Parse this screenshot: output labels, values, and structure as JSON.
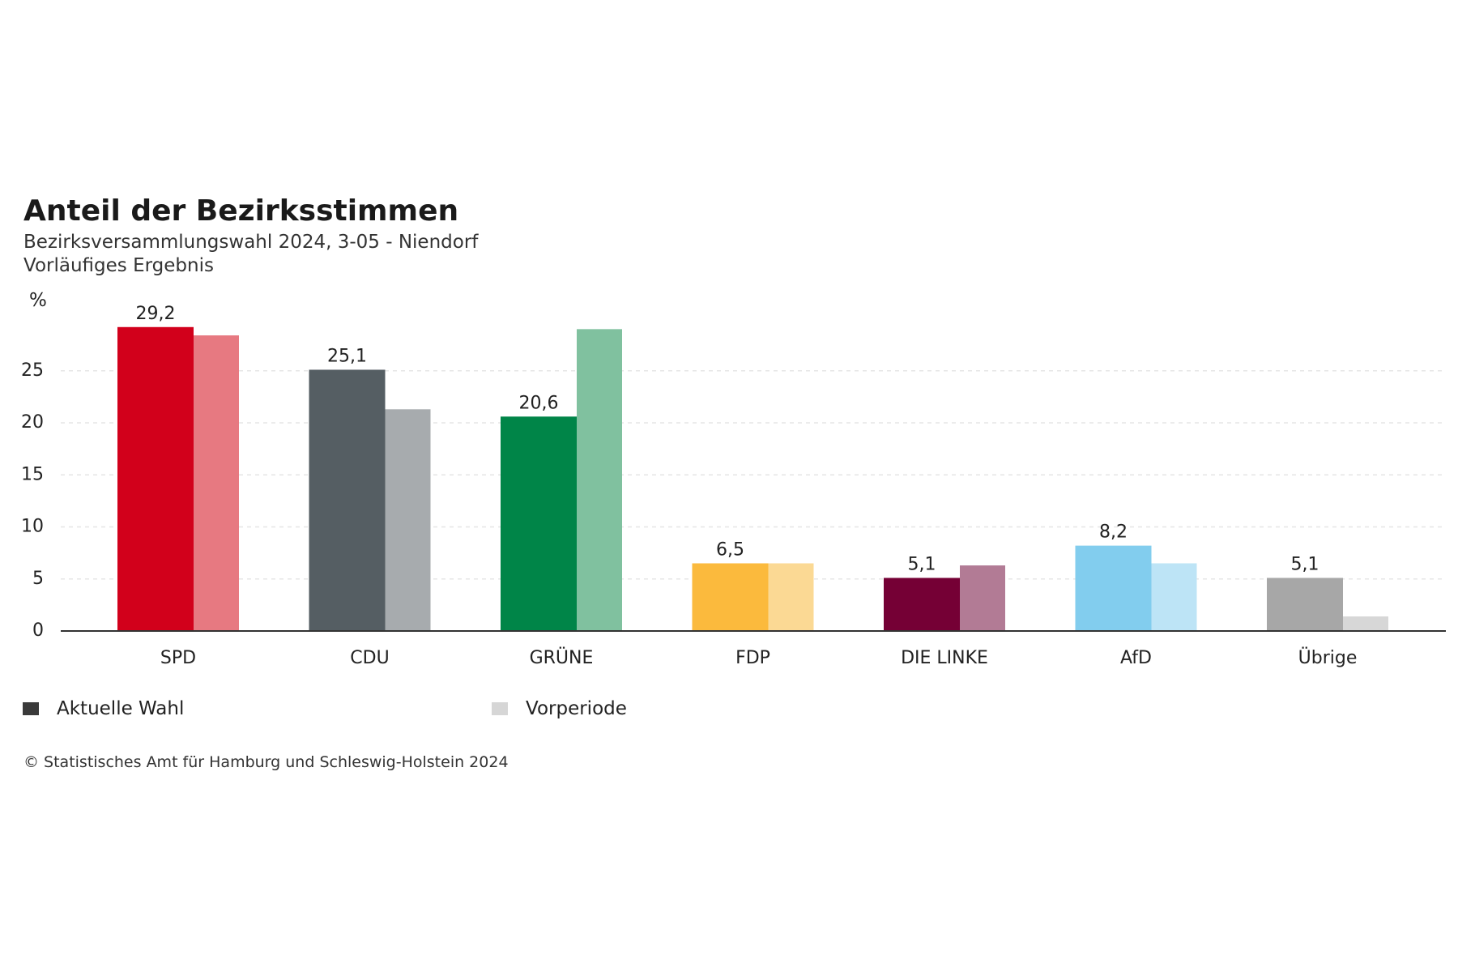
{
  "chart_data": {
    "type": "bar",
    "title": "Anteil der Bezirksstimmen",
    "subtitle": "Bezirksversammlungswahl 2024, 3-05 - Niendorf",
    "subtitle2": "Vorläufiges Ergebnis",
    "ylabel": "%",
    "xlabel": "",
    "ylim": [
      0,
      30
    ],
    "yticks": [
      0,
      5,
      10,
      15,
      20,
      25
    ],
    "grid": true,
    "categories": [
      "SPD",
      "CDU",
      "GRÜNE",
      "FDP",
      "DIE LINKE",
      "AfD",
      "Übrige"
    ],
    "series": [
      {
        "name": "Aktuelle Wahl",
        "values": [
          29.2,
          25.1,
          20.6,
          6.5,
          5.1,
          8.2,
          5.1
        ],
        "value_labels": [
          "29,2",
          "25,1",
          "20,6",
          "6,5",
          "5,1",
          "8,2",
          "5,1"
        ],
        "colors": [
          "#d2001b",
          "#555e63",
          "#008548",
          "#fbba3d",
          "#750035",
          "#82cdee",
          "#a7a7a7"
        ]
      },
      {
        "name": "Vorperiode",
        "values": [
          28.4,
          21.3,
          29.0,
          6.5,
          6.3,
          6.5,
          1.4
        ],
        "colors": [
          "#e77981",
          "#a7abae",
          "#80c19f",
          "#fbd994",
          "#b27b95",
          "#bde4f6",
          "#d7d7d7"
        ]
      }
    ],
    "legend_position": "bottom-left",
    "legend_colors": [
      "#3a3a3a",
      "#d6d6d6"
    ]
  },
  "copyright": "© Statistisches Amt für Hamburg und Schleswig-Holstein 2024"
}
